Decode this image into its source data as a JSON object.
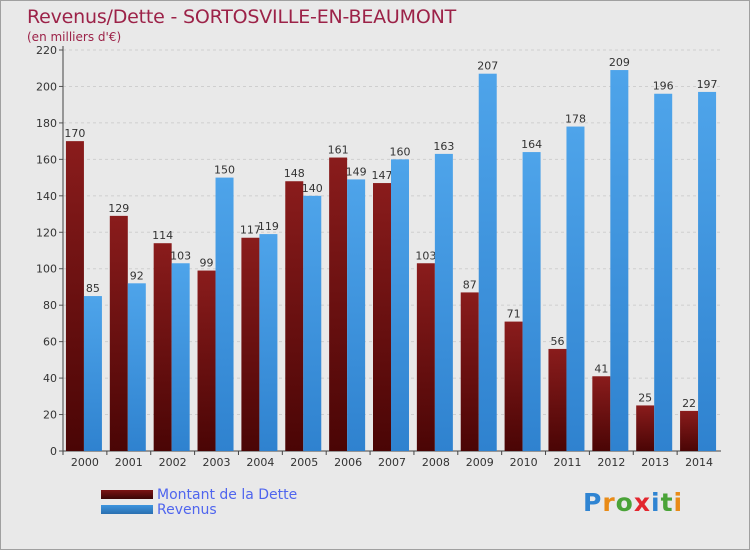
{
  "title": "Revenus/Dette - SORTOSVILLE-EN-BEAUMONT",
  "subtitle": "(en milliers d'€)",
  "logo": {
    "text": "Proxiti",
    "letters": [
      "P",
      "r",
      "o",
      "x",
      "i",
      "t",
      "i"
    ],
    "colors": [
      "#2f84d2",
      "#e98b17",
      "#4aa338",
      "#e3262e",
      "#2f84d2",
      "#4aa338",
      "#e98b17"
    ]
  },
  "legend": [
    {
      "label": "Montant de la Dette",
      "color": "#7b1414"
    },
    {
      "label": "Revenus",
      "color": "#3d95df"
    }
  ],
  "chart_data": {
    "type": "bar",
    "categories": [
      "2000",
      "2001",
      "2002",
      "2003",
      "2004",
      "2005",
      "2006",
      "2007",
      "2008",
      "2009",
      "2010",
      "2011",
      "2012",
      "2013",
      "2014"
    ],
    "series": [
      {
        "name": "Montant de la Dette",
        "color": "#7b1414",
        "values": [
          170,
          129,
          114,
          99,
          117,
          148,
          161,
          147,
          103,
          87,
          71,
          56,
          41,
          25,
          22
        ]
      },
      {
        "name": "Revenus",
        "color": "#3d95df",
        "values": [
          85,
          92,
          103,
          150,
          119,
          140,
          149,
          160,
          163,
          207,
          164,
          178,
          209,
          196,
          197
        ]
      }
    ],
    "yticks": [
      0,
      20,
      40,
      60,
      80,
      100,
      120,
      140,
      160,
      180,
      200,
      220
    ],
    "ylim": [
      0,
      220
    ],
    "grid": true,
    "legend_position": "bottom-left"
  }
}
